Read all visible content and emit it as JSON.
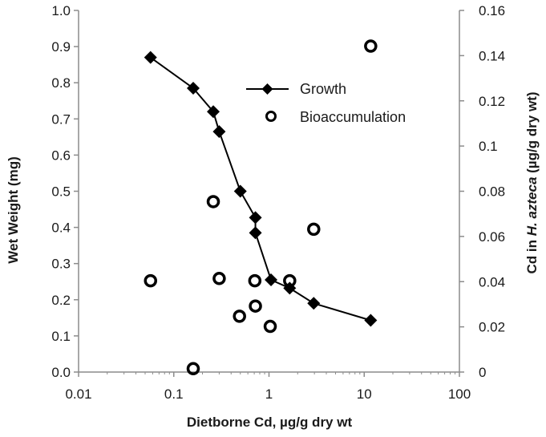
{
  "chart_data": {
    "type": "scatter",
    "xlabel": "Dietborne Cd, µg/g dry wt",
    "ylabel_left": "Wet Weight (mg)",
    "ylabel_right_prefix": "Cd in ",
    "ylabel_right_species": "H. azteca",
    "ylabel_right_suffix": " (µg/g dry wt)",
    "x_scale": "log",
    "xlim": [
      0.01,
      100
    ],
    "ylim_left": [
      0,
      1.0
    ],
    "ylim_right": [
      0,
      0.16
    ],
    "x_ticks": [
      "0.01",
      "0.1",
      "1",
      "10",
      "100"
    ],
    "y_left_ticks": [
      "0.0",
      "0.1",
      "0.2",
      "0.3",
      "0.4",
      "0.5",
      "0.6",
      "0.7",
      "0.8",
      "0.9",
      "1.0"
    ],
    "y_right_ticks": [
      "0",
      "0.02",
      "0.04",
      "0.06",
      "0.08",
      "0.1",
      "0.12",
      "0.14",
      "0.16"
    ],
    "grid": false,
    "legend_position": "upper-center",
    "series": [
      {
        "name": "Growth",
        "marker": "diamond-filled",
        "line": true,
        "axis": "left",
        "color": "#000000",
        "x": [
          0.057,
          0.16,
          0.26,
          0.3,
          0.5,
          0.72,
          0.72,
          1.05,
          1.65,
          2.95,
          11.7
        ],
        "y": [
          0.87,
          0.785,
          0.72,
          0.665,
          0.5,
          0.427,
          0.385,
          0.255,
          0.232,
          0.19,
          0.143
        ]
      },
      {
        "name": "Bioaccumulation",
        "marker": "circle-open",
        "line": false,
        "axis": "right",
        "color": "#000000",
        "x": [
          0.057,
          0.16,
          0.26,
          0.3,
          0.49,
          0.71,
          0.72,
          1.03,
          1.65,
          2.95,
          11.7
        ],
        "y": [
          0.0404,
          0.0015,
          0.0754,
          0.0414,
          0.0247,
          0.0404,
          0.0292,
          0.0202,
          0.0404,
          0.0632,
          0.1442
        ]
      }
    ]
  }
}
